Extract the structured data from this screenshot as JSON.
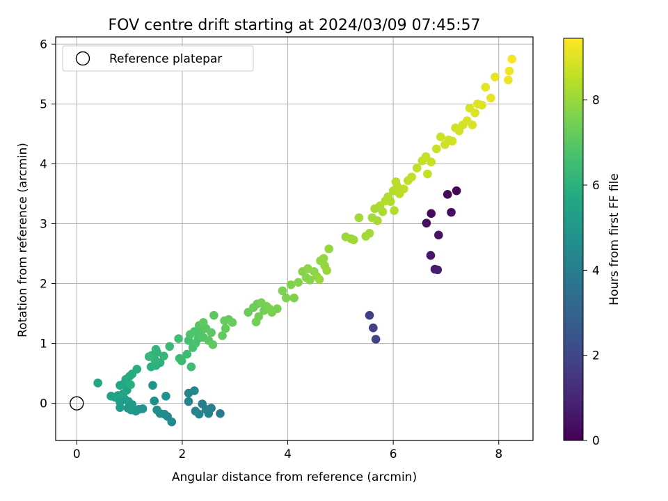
{
  "chart_data": {
    "type": "scatter",
    "title": "FOV centre drift starting at 2024/03/09 07:45:57",
    "xlabel": "Angular distance from reference (arcmin)",
    "ylabel": "Rotation from reference (arcmin)",
    "xlim": [
      -0.4,
      8.65
    ],
    "ylim": [
      -0.62,
      6.12
    ],
    "xticks": [
      0,
      2,
      4,
      6,
      8
    ],
    "yticks": [
      0,
      1,
      2,
      3,
      4,
      5,
      6
    ],
    "grid": true,
    "legend": {
      "placement": "top-left",
      "entries": [
        "Reference platepar"
      ]
    },
    "reference_point": {
      "x": 0,
      "y": 0,
      "label": "Reference platepar"
    },
    "colorbar": {
      "label": "Hours from first FF file",
      "min": 0,
      "max": 9.45,
      "ticks": [
        0,
        2,
        4,
        6,
        8
      ],
      "colormap": "viridis"
    },
    "points": [
      {
        "x": 7.2,
        "y": 3.55,
        "h": 0.1
      },
      {
        "x": 7.03,
        "y": 3.49,
        "h": 0.2
      },
      {
        "x": 6.72,
        "y": 3.17,
        "h": 0.3
      },
      {
        "x": 7.1,
        "y": 3.19,
        "h": 0.35
      },
      {
        "x": 6.63,
        "y": 3.01,
        "h": 0.4
      },
      {
        "x": 6.86,
        "y": 2.81,
        "h": 0.5
      },
      {
        "x": 6.71,
        "y": 2.47,
        "h": 0.6
      },
      {
        "x": 6.79,
        "y": 2.24,
        "h": 0.7
      },
      {
        "x": 6.84,
        "y": 2.23,
        "h": 0.8
      },
      {
        "x": 5.55,
        "y": 1.47,
        "h": 1.7
      },
      {
        "x": 5.62,
        "y": 1.26,
        "h": 1.8
      },
      {
        "x": 5.67,
        "y": 1.07,
        "h": 1.9
      },
      {
        "x": 2.72,
        "y": -0.17,
        "h": 3.9
      },
      {
        "x": 2.55,
        "y": -0.08,
        "h": 4.0
      },
      {
        "x": 2.38,
        "y": -0.01,
        "h": 4.05
      },
      {
        "x": 2.45,
        "y": -0.1,
        "h": 4.1
      },
      {
        "x": 2.5,
        "y": -0.17,
        "h": 4.15
      },
      {
        "x": 2.32,
        "y": -0.18,
        "h": 4.2
      },
      {
        "x": 2.25,
        "y": -0.13,
        "h": 4.25
      },
      {
        "x": 2.12,
        "y": 0.03,
        "h": 4.3
      },
      {
        "x": 2.12,
        "y": 0.17,
        "h": 4.35
      },
      {
        "x": 2.23,
        "y": 0.21,
        "h": 4.4
      },
      {
        "x": 1.8,
        "y": -0.31,
        "h": 4.45
      },
      {
        "x": 1.72,
        "y": -0.22,
        "h": 4.5
      },
      {
        "x": 1.66,
        "y": -0.18,
        "h": 4.55
      },
      {
        "x": 1.58,
        "y": -0.17,
        "h": 4.6
      },
      {
        "x": 1.52,
        "y": -0.11,
        "h": 4.65
      },
      {
        "x": 1.47,
        "y": 0.04,
        "h": 4.7
      },
      {
        "x": 1.69,
        "y": 0.12,
        "h": 4.75
      },
      {
        "x": 1.44,
        "y": 0.3,
        "h": 4.8
      },
      {
        "x": 1.25,
        "y": -0.09,
        "h": 4.85
      },
      {
        "x": 1.18,
        "y": -0.1,
        "h": 4.9
      },
      {
        "x": 1.12,
        "y": -0.13,
        "h": 4.95
      },
      {
        "x": 1.03,
        "y": -0.11,
        "h": 5.0
      },
      {
        "x": 0.97,
        "y": -0.08,
        "h": 5.05
      },
      {
        "x": 1.05,
        "y": -0.02,
        "h": 5.1
      },
      {
        "x": 0.98,
        "y": 0.03,
        "h": 5.15
      },
      {
        "x": 0.91,
        "y": 0.07,
        "h": 5.2
      },
      {
        "x": 0.82,
        "y": -0.07,
        "h": 5.25
      },
      {
        "x": 0.82,
        "y": 0.02,
        "h": 5.3
      },
      {
        "x": 0.73,
        "y": 0.1,
        "h": 5.35
      },
      {
        "x": 0.65,
        "y": 0.12,
        "h": 5.4
      },
      {
        "x": 0.78,
        "y": 0.13,
        "h": 5.45
      },
      {
        "x": 0.88,
        "y": 0.16,
        "h": 5.5
      },
      {
        "x": 0.95,
        "y": 0.22,
        "h": 5.55
      },
      {
        "x": 0.4,
        "y": 0.34,
        "h": 5.55
      },
      {
        "x": 0.82,
        "y": 0.3,
        "h": 5.6
      },
      {
        "x": 0.9,
        "y": 0.33,
        "h": 5.65
      },
      {
        "x": 0.93,
        "y": 0.4,
        "h": 5.7
      },
      {
        "x": 1.0,
        "y": 0.45,
        "h": 5.75
      },
      {
        "x": 1.05,
        "y": 0.49,
        "h": 5.8
      },
      {
        "x": 1.14,
        "y": 0.57,
        "h": 5.85
      },
      {
        "x": 1.02,
        "y": 0.31,
        "h": 5.9
      },
      {
        "x": 1.41,
        "y": 0.61,
        "h": 5.95
      },
      {
        "x": 1.5,
        "y": 0.63,
        "h": 6.0
      },
      {
        "x": 1.58,
        "y": 0.68,
        "h": 6.05
      },
      {
        "x": 1.48,
        "y": 0.73,
        "h": 6.1
      },
      {
        "x": 1.52,
        "y": 0.85,
        "h": 6.1
      },
      {
        "x": 1.5,
        "y": 0.9,
        "h": 6.15
      },
      {
        "x": 1.42,
        "y": 0.8,
        "h": 6.2
      },
      {
        "x": 1.65,
        "y": 0.79,
        "h": 6.25
      },
      {
        "x": 1.37,
        "y": 0.78,
        "h": 6.3
      },
      {
        "x": 1.76,
        "y": 0.95,
        "h": 6.35
      },
      {
        "x": 1.95,
        "y": 0.75,
        "h": 6.4
      },
      {
        "x": 1.99,
        "y": 0.71,
        "h": 6.45
      },
      {
        "x": 2.09,
        "y": 0.82,
        "h": 6.5
      },
      {
        "x": 2.17,
        "y": 0.61,
        "h": 6.5
      },
      {
        "x": 1.93,
        "y": 1.08,
        "h": 6.55
      },
      {
        "x": 2.12,
        "y": 1.05,
        "h": 6.6
      },
      {
        "x": 2.2,
        "y": 0.93,
        "h": 6.65
      },
      {
        "x": 2.25,
        "y": 1.0,
        "h": 6.7
      },
      {
        "x": 2.3,
        "y": 1.08,
        "h": 6.7
      },
      {
        "x": 2.15,
        "y": 1.15,
        "h": 6.75
      },
      {
        "x": 2.23,
        "y": 1.2,
        "h": 6.8
      },
      {
        "x": 2.35,
        "y": 1.18,
        "h": 6.85
      },
      {
        "x": 2.4,
        "y": 1.1,
        "h": 6.9
      },
      {
        "x": 2.32,
        "y": 1.3,
        "h": 6.95
      },
      {
        "x": 2.45,
        "y": 1.25,
        "h": 7.0
      },
      {
        "x": 2.5,
        "y": 1.05,
        "h": 7.0
      },
      {
        "x": 2.55,
        "y": 1.18,
        "h": 7.05
      },
      {
        "x": 2.6,
        "y": 1.47,
        "h": 7.05
      },
      {
        "x": 2.4,
        "y": 1.35,
        "h": 7.1
      },
      {
        "x": 2.58,
        "y": 0.98,
        "h": 7.15
      },
      {
        "x": 2.76,
        "y": 1.13,
        "h": 7.15
      },
      {
        "x": 2.82,
        "y": 1.25,
        "h": 7.2
      },
      {
        "x": 2.88,
        "y": 1.4,
        "h": 7.2
      },
      {
        "x": 2.95,
        "y": 1.35,
        "h": 7.25
      },
      {
        "x": 2.8,
        "y": 1.38,
        "h": 7.25
      },
      {
        "x": 3.25,
        "y": 1.52,
        "h": 7.3
      },
      {
        "x": 3.35,
        "y": 1.6,
        "h": 7.35
      },
      {
        "x": 3.42,
        "y": 1.66,
        "h": 7.35
      },
      {
        "x": 3.4,
        "y": 1.36,
        "h": 7.4
      },
      {
        "x": 3.45,
        "y": 1.45,
        "h": 7.4
      },
      {
        "x": 3.55,
        "y": 1.55,
        "h": 7.45
      },
      {
        "x": 3.6,
        "y": 1.62,
        "h": 7.45
      },
      {
        "x": 3.7,
        "y": 1.52,
        "h": 7.5
      },
      {
        "x": 3.5,
        "y": 1.68,
        "h": 7.5
      },
      {
        "x": 3.8,
        "y": 1.58,
        "h": 7.55
      },
      {
        "x": 3.65,
        "y": 1.58,
        "h": 7.55
      },
      {
        "x": 3.9,
        "y": 1.88,
        "h": 7.6
      },
      {
        "x": 3.97,
        "y": 1.76,
        "h": 7.6
      },
      {
        "x": 4.12,
        "y": 1.76,
        "h": 7.65
      },
      {
        "x": 4.06,
        "y": 1.98,
        "h": 7.65
      },
      {
        "x": 4.2,
        "y": 2.02,
        "h": 7.7
      },
      {
        "x": 4.28,
        "y": 2.2,
        "h": 7.7
      },
      {
        "x": 4.35,
        "y": 2.1,
        "h": 7.75
      },
      {
        "x": 4.42,
        "y": 2.06,
        "h": 7.75
      },
      {
        "x": 4.5,
        "y": 2.2,
        "h": 7.8
      },
      {
        "x": 4.38,
        "y": 2.25,
        "h": 7.8
      },
      {
        "x": 4.55,
        "y": 2.12,
        "h": 7.85
      },
      {
        "x": 4.62,
        "y": 2.38,
        "h": 7.85
      },
      {
        "x": 4.7,
        "y": 2.3,
        "h": 7.9
      },
      {
        "x": 4.68,
        "y": 2.42,
        "h": 7.9
      },
      {
        "x": 4.78,
        "y": 2.58,
        "h": 7.95
      },
      {
        "x": 4.74,
        "y": 2.22,
        "h": 7.95
      },
      {
        "x": 4.6,
        "y": 2.07,
        "h": 8.0
      },
      {
        "x": 5.1,
        "y": 2.78,
        "h": 8.0
      },
      {
        "x": 5.2,
        "y": 2.75,
        "h": 8.05
      },
      {
        "x": 5.25,
        "y": 2.73,
        "h": 8.05
      },
      {
        "x": 5.35,
        "y": 3.1,
        "h": 8.1
      },
      {
        "x": 5.48,
        "y": 2.79,
        "h": 8.1
      },
      {
        "x": 5.55,
        "y": 2.84,
        "h": 8.15
      },
      {
        "x": 5.6,
        "y": 3.1,
        "h": 8.15
      },
      {
        "x": 5.65,
        "y": 3.25,
        "h": 8.2
      },
      {
        "x": 5.7,
        "y": 3.05,
        "h": 8.2
      },
      {
        "x": 5.75,
        "y": 3.3,
        "h": 8.25
      },
      {
        "x": 5.8,
        "y": 3.2,
        "h": 8.25
      },
      {
        "x": 5.85,
        "y": 3.38,
        "h": 8.3
      },
      {
        "x": 5.9,
        "y": 3.45,
        "h": 8.3
      },
      {
        "x": 5.95,
        "y": 3.37,
        "h": 8.35
      },
      {
        "x": 6.02,
        "y": 3.22,
        "h": 8.35
      },
      {
        "x": 6.0,
        "y": 3.55,
        "h": 8.4
      },
      {
        "x": 6.08,
        "y": 3.62,
        "h": 8.4
      },
      {
        "x": 6.12,
        "y": 3.5,
        "h": 8.45
      },
      {
        "x": 6.05,
        "y": 3.7,
        "h": 8.45
      },
      {
        "x": 6.2,
        "y": 3.58,
        "h": 8.5
      },
      {
        "x": 6.28,
        "y": 3.72,
        "h": 8.5
      },
      {
        "x": 6.35,
        "y": 3.78,
        "h": 8.55
      },
      {
        "x": 6.45,
        "y": 3.93,
        "h": 8.55
      },
      {
        "x": 6.55,
        "y": 4.05,
        "h": 8.6
      },
      {
        "x": 6.65,
        "y": 3.83,
        "h": 8.6
      },
      {
        "x": 6.72,
        "y": 4.03,
        "h": 8.65
      },
      {
        "x": 6.62,
        "y": 4.12,
        "h": 8.65
      },
      {
        "x": 6.82,
        "y": 4.25,
        "h": 8.7
      },
      {
        "x": 6.9,
        "y": 4.45,
        "h": 8.7
      },
      {
        "x": 6.98,
        "y": 4.32,
        "h": 8.75
      },
      {
        "x": 7.05,
        "y": 4.4,
        "h": 8.75
      },
      {
        "x": 7.12,
        "y": 4.38,
        "h": 8.8
      },
      {
        "x": 7.18,
        "y": 4.6,
        "h": 8.8
      },
      {
        "x": 7.25,
        "y": 4.55,
        "h": 8.85
      },
      {
        "x": 7.32,
        "y": 4.65,
        "h": 8.85
      },
      {
        "x": 7.4,
        "y": 4.72,
        "h": 8.9
      },
      {
        "x": 7.45,
        "y": 4.93,
        "h": 8.9
      },
      {
        "x": 7.5,
        "y": 4.65,
        "h": 8.95
      },
      {
        "x": 7.55,
        "y": 4.85,
        "h": 8.95
      },
      {
        "x": 7.6,
        "y": 5.0,
        "h": 9.0
      },
      {
        "x": 7.68,
        "y": 4.98,
        "h": 9.0
      },
      {
        "x": 7.75,
        "y": 5.28,
        "h": 9.05
      },
      {
        "x": 7.85,
        "y": 5.1,
        "h": 9.1
      },
      {
        "x": 7.93,
        "y": 5.45,
        "h": 9.15
      },
      {
        "x": 8.18,
        "y": 5.4,
        "h": 9.2
      },
      {
        "x": 8.2,
        "y": 5.55,
        "h": 9.25
      },
      {
        "x": 8.25,
        "y": 5.75,
        "h": 9.35
      }
    ]
  }
}
